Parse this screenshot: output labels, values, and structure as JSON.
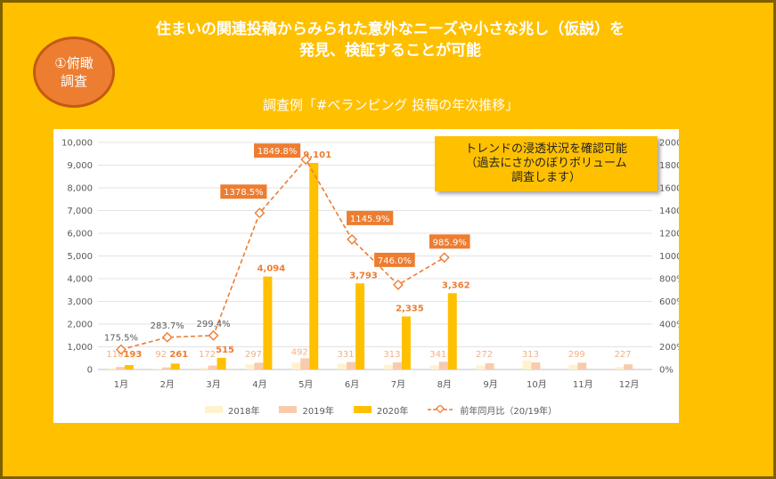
{
  "headline": {
    "line1": "住まいの関連投稿からみられた意外なニーズや小さな兆し（仮説）を",
    "line2": "発見、検証することが可能"
  },
  "badge": {
    "line1": "①俯瞰",
    "line2": "調査"
  },
  "subtitle": "調査例「#ベランピング 投稿の年次推移」",
  "callout": {
    "line1": "トレンドの浸透状況を確認可能",
    "line2": "（過去にさかのぼりボリューム",
    "line3": "調査します）"
  },
  "colors": {
    "background": "#FFC000",
    "series_2018": "#FFF2CC",
    "series_2019": "#F8CBAD",
    "series_2020": "#FFC000",
    "ratio_line": "#ED7D31",
    "ratio_label_box": "#ED7D31",
    "badge": "#ED7D31"
  },
  "chart_data": {
    "type": "bar",
    "categories": [
      "1月",
      "2月",
      "3月",
      "4月",
      "5月",
      "6月",
      "7月",
      "8月",
      "9月",
      "10月",
      "11月",
      "12月"
    ],
    "series": [
      {
        "name": "2018年",
        "axis": "left",
        "values": [
          60,
          40,
          80,
          230,
          300,
          250,
          200,
          180,
          180,
          390,
          200,
          110
        ]
      },
      {
        "name": "2019年",
        "axis": "left",
        "values": [
          110,
          92,
          172,
          297,
          492,
          331,
          313,
          341,
          272,
          313,
          299,
          227
        ]
      },
      {
        "name": "2020年",
        "axis": "left",
        "values": [
          193,
          261,
          515,
          4094,
          9101,
          3793,
          2335,
          3362,
          null,
          null,
          null,
          null
        ]
      }
    ],
    "line_series": {
      "name": "前年同月比（20/19年）",
      "axis": "right",
      "style": "dashed-diamond",
      "values": [
        175.5,
        283.7,
        299.4,
        1378.5,
        1849.8,
        1145.9,
        746.0,
        985.9
      ],
      "labels": [
        "175.5%",
        "283.7%",
        "299.4%",
        "1378.5%",
        "1849.8%",
        "1145.9%",
        "746.0%",
        "985.9%"
      ]
    },
    "data_labels_2019": [
      "110",
      "92",
      "172",
      "297",
      "492",
      "331",
      "313",
      "341",
      "272",
      "313",
      "299",
      "227"
    ],
    "data_labels_2020": [
      "193",
      "261",
      "515",
      "4,094",
      "9,101",
      "3,793",
      "2,335",
      "3,362"
    ],
    "y_left": {
      "ylim": [
        0,
        10000
      ],
      "ticks": [
        "0",
        "1,000",
        "2,000",
        "3,000",
        "4,000",
        "5,000",
        "6,000",
        "7,000",
        "8,000",
        "9,000",
        "10,000"
      ]
    },
    "y_right": {
      "ylim": [
        0,
        2000
      ],
      "ticks": [
        "0%",
        "200%",
        "400%",
        "600%",
        "800%",
        "1000%",
        "1200%",
        "1400%",
        "1600%",
        "1800%",
        "2000%"
      ]
    },
    "grid": true,
    "legend_position": "bottom"
  }
}
